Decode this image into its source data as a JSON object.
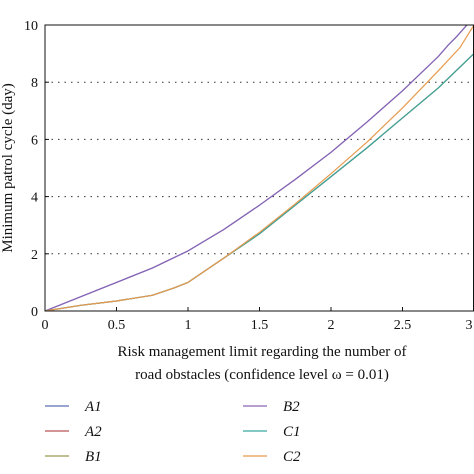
{
  "chart_data": {
    "type": "line",
    "xlabel": "Risk management limit regarding the number of",
    "xlabel_line2": "road obstacles (confidence level ω = 0.01)",
    "ylabel": "Minimum patrol cycle (day)",
    "xlim": [
      0,
      3
    ],
    "ylim": [
      0,
      10
    ],
    "xticks": [
      "0",
      "0.5",
      "1",
      "1.5",
      "2",
      "2.5",
      "3"
    ],
    "yticks": [
      "0",
      "2",
      "4",
      "6",
      "8",
      "10"
    ],
    "grid": "horizontal dotted",
    "legend_position": "below",
    "series": [
      {
        "name": "A1",
        "color": "#5b6fb0",
        "points": [
          [
            0,
            0
          ],
          [
            0.25,
            0.5
          ],
          [
            0.5,
            1.0
          ],
          [
            0.75,
            1.5
          ],
          [
            1,
            2.1
          ],
          [
            1.25,
            2.85
          ],
          [
            1.5,
            3.7
          ],
          [
            1.75,
            4.6
          ],
          [
            2,
            5.55
          ],
          [
            2.25,
            6.6
          ],
          [
            2.5,
            7.7
          ],
          [
            2.75,
            8.9
          ],
          [
            2.82,
            9.3
          ],
          [
            2.88,
            9.6
          ],
          [
            2.95,
            10
          ]
        ]
      },
      {
        "name": "A2",
        "color": "#b85454",
        "points": [
          [
            0,
            0
          ],
          [
            0.25,
            0.2
          ],
          [
            0.5,
            0.35
          ],
          [
            0.75,
            0.55
          ],
          [
            0.9,
            0.8
          ],
          [
            1,
            1.0
          ],
          [
            1.25,
            1.85
          ],
          [
            1.5,
            2.7
          ],
          [
            1.75,
            3.7
          ],
          [
            2,
            4.7
          ],
          [
            2.25,
            5.7
          ],
          [
            2.5,
            6.75
          ],
          [
            2.75,
            7.8
          ],
          [
            3,
            9.0
          ]
        ]
      },
      {
        "name": "B1",
        "color": "#9c9a55",
        "points": [
          [
            0,
            0
          ],
          [
            0.25,
            0.2
          ],
          [
            0.5,
            0.35
          ],
          [
            0.75,
            0.55
          ],
          [
            0.9,
            0.8
          ],
          [
            1,
            1.0
          ],
          [
            1.25,
            1.85
          ],
          [
            1.5,
            2.7
          ],
          [
            1.75,
            3.7
          ],
          [
            2,
            4.7
          ],
          [
            2.25,
            5.7
          ],
          [
            2.5,
            6.75
          ],
          [
            2.75,
            7.8
          ],
          [
            3,
            9.0
          ]
        ]
      },
      {
        "name": "B2",
        "color": "#8a63b5",
        "points": [
          [
            0,
            0
          ],
          [
            0.25,
            0.5
          ],
          [
            0.5,
            1.0
          ],
          [
            0.75,
            1.5
          ],
          [
            1,
            2.1
          ],
          [
            1.25,
            2.85
          ],
          [
            1.5,
            3.7
          ],
          [
            1.75,
            4.6
          ],
          [
            2,
            5.55
          ],
          [
            2.25,
            6.6
          ],
          [
            2.5,
            7.7
          ],
          [
            2.75,
            8.9
          ],
          [
            2.82,
            9.3
          ],
          [
            2.88,
            9.6
          ],
          [
            2.95,
            10
          ]
        ]
      },
      {
        "name": "C1",
        "color": "#3aa7a0",
        "points": [
          [
            0,
            0
          ],
          [
            0.25,
            0.2
          ],
          [
            0.5,
            0.35
          ],
          [
            0.75,
            0.55
          ],
          [
            0.9,
            0.8
          ],
          [
            1,
            1.0
          ],
          [
            1.25,
            1.85
          ],
          [
            1.5,
            2.7
          ],
          [
            1.75,
            3.7
          ],
          [
            2,
            4.7
          ],
          [
            2.25,
            5.7
          ],
          [
            2.5,
            6.75
          ],
          [
            2.75,
            7.8
          ],
          [
            3,
            9.0
          ]
        ]
      },
      {
        "name": "C2",
        "color": "#e79a4e",
        "points": [
          [
            0,
            0
          ],
          [
            0.25,
            0.2
          ],
          [
            0.5,
            0.35
          ],
          [
            0.75,
            0.55
          ],
          [
            0.9,
            0.8
          ],
          [
            1,
            1.0
          ],
          [
            1.25,
            1.85
          ],
          [
            1.5,
            2.75
          ],
          [
            1.75,
            3.75
          ],
          [
            2,
            4.8
          ],
          [
            2.25,
            5.9
          ],
          [
            2.5,
            7.1
          ],
          [
            2.75,
            8.4
          ],
          [
            2.9,
            9.2
          ],
          [
            3,
            10
          ]
        ]
      }
    ]
  }
}
